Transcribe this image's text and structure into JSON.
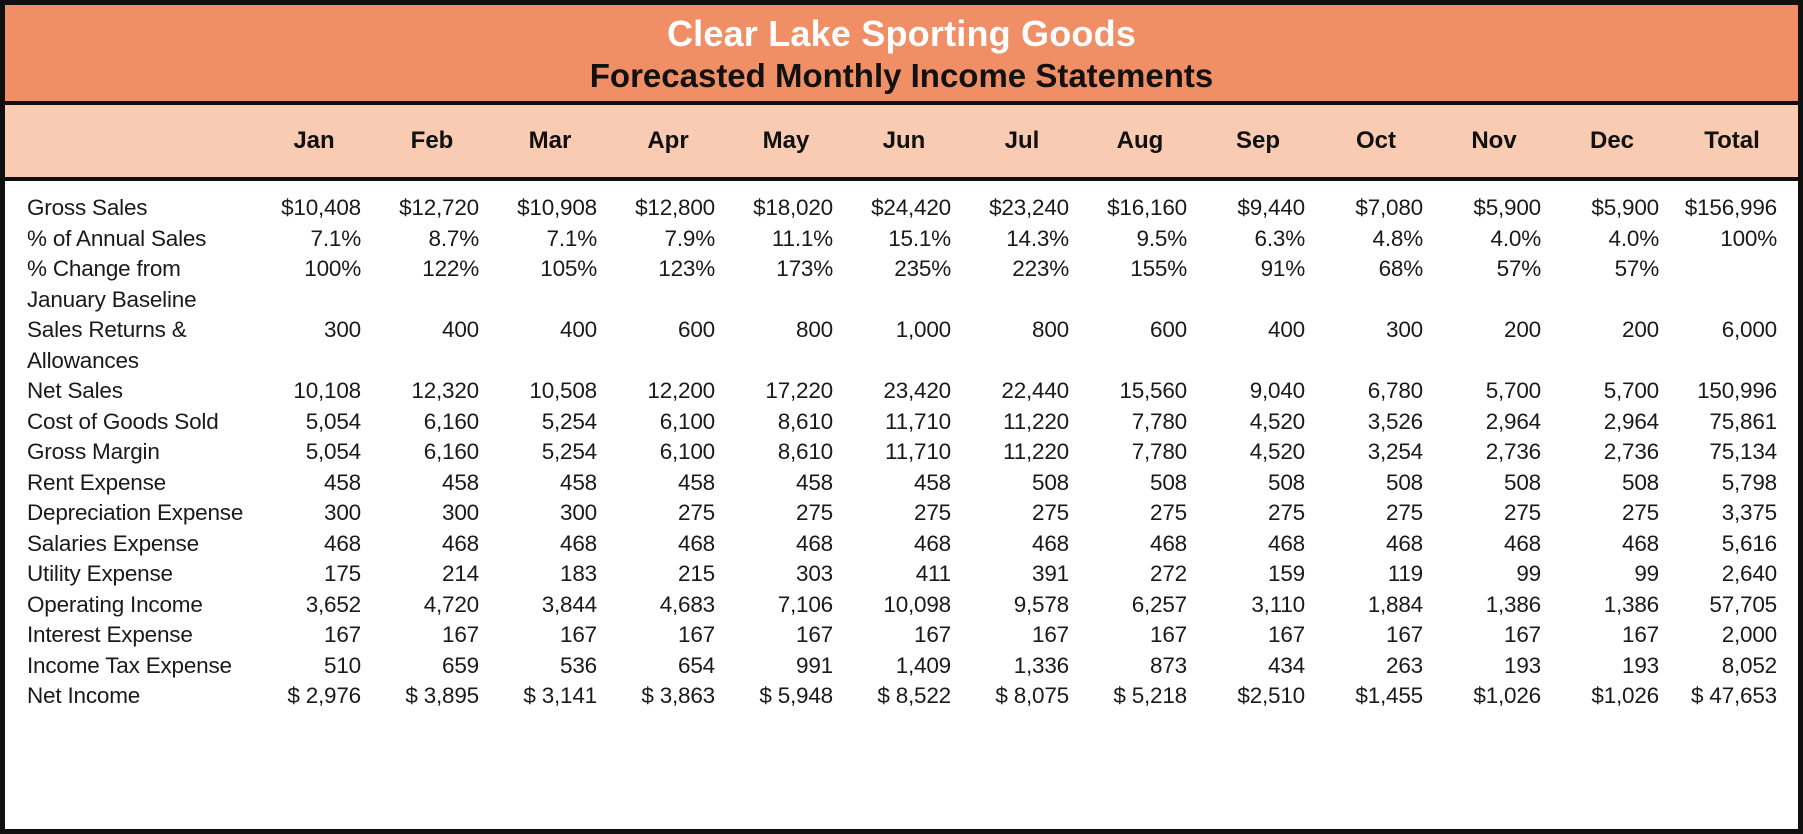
{
  "title": {
    "line1": "Clear Lake Sporting Goods",
    "line2": "Forecasted Monthly Income Statements"
  },
  "colors": {
    "header_bg": "#F08F65",
    "months_bg": "#F8CBB2",
    "border": "#0F0F0F",
    "title_line1_text": "#FFFFFF",
    "title_line2_text": "#111111"
  },
  "table": {
    "columns": [
      "",
      "Jan",
      "Feb",
      "Mar",
      "Apr",
      "May",
      "Jun",
      "Jul",
      "Aug",
      "Sep",
      "Oct",
      "Nov",
      "Dec",
      "Total"
    ],
    "rows": [
      {
        "label": "Gross Sales",
        "values": [
          "$10,408",
          "$12,720",
          "$10,908",
          "$12,800",
          "$18,020",
          "$24,420",
          "$23,240",
          "$16,160",
          "$9,440",
          "$7,080",
          "$5,900",
          "$5,900",
          "$156,996"
        ]
      },
      {
        "label": "% of Annual Sales",
        "values": [
          "7.1%",
          "8.7%",
          "7.1%",
          "7.9%",
          "11.1%",
          "15.1%",
          "14.3%",
          "9.5%",
          "6.3%",
          "4.8%",
          "4.0%",
          "4.0%",
          "100%"
        ]
      },
      {
        "label": "% Change from\nJanuary Baseline",
        "values": [
          "100%",
          "122%",
          "105%",
          "123%",
          "173%",
          "235%",
          "223%",
          "155%",
          "91%",
          "68%",
          "57%",
          "57%",
          ""
        ]
      },
      {
        "label": "Sales Returns &\nAllowances",
        "values": [
          "300",
          "400",
          "400",
          "600",
          "800",
          "1,000",
          "800",
          "600",
          "400",
          "300",
          "200",
          "200",
          "6,000"
        ]
      },
      {
        "label": "Net Sales",
        "values": [
          "10,108",
          "12,320",
          "10,508",
          "12,200",
          "17,220",
          "23,420",
          "22,440",
          "15,560",
          "9,040",
          "6,780",
          "5,700",
          "5,700",
          "150,996"
        ]
      },
      {
        "label": "Cost of Goods Sold",
        "values": [
          "5,054",
          "6,160",
          "5,254",
          "6,100",
          "8,610",
          "11,710",
          "11,220",
          "7,780",
          "4,520",
          "3,526",
          "2,964",
          "2,964",
          "75,861"
        ]
      },
      {
        "label": "Gross Margin",
        "values": [
          "5,054",
          "6,160",
          "5,254",
          "6,100",
          "8,610",
          "11,710",
          "11,220",
          "7,780",
          "4,520",
          "3,254",
          "2,736",
          "2,736",
          "75,134"
        ]
      },
      {
        "label": "Rent Expense",
        "values": [
          "458",
          "458",
          "458",
          "458",
          "458",
          "458",
          "508",
          "508",
          "508",
          "508",
          "508",
          "508",
          "5,798"
        ]
      },
      {
        "label": "Depreciation Expense",
        "values": [
          "300",
          "300",
          "300",
          "275",
          "275",
          "275",
          "275",
          "275",
          "275",
          "275",
          "275",
          "275",
          "3,375"
        ]
      },
      {
        "label": "Salaries Expense",
        "values": [
          "468",
          "468",
          "468",
          "468",
          "468",
          "468",
          "468",
          "468",
          "468",
          "468",
          "468",
          "468",
          "5,616"
        ]
      },
      {
        "label": "Utility Expense",
        "values": [
          "175",
          "214",
          "183",
          "215",
          "303",
          "411",
          "391",
          "272",
          "159",
          "119",
          "99",
          "99",
          "2,640"
        ]
      },
      {
        "label": "Operating Income",
        "values": [
          "3,652",
          "4,720",
          "3,844",
          "4,683",
          "7,106",
          "10,098",
          "9,578",
          "6,257",
          "3,110",
          "1,884",
          "1,386",
          "1,386",
          "57,705"
        ]
      },
      {
        "label": "Interest Expense",
        "values": [
          "167",
          "167",
          "167",
          "167",
          "167",
          "167",
          "167",
          "167",
          "167",
          "167",
          "167",
          "167",
          "2,000"
        ]
      },
      {
        "label": "Income Tax Expense",
        "values": [
          "510",
          "659",
          "536",
          "654",
          "991",
          "1,409",
          "1,336",
          "873",
          "434",
          "263",
          "193",
          "193",
          "8,052"
        ]
      },
      {
        "label": "Net Income",
        "values": [
          "$ 2,976",
          "$ 3,895",
          "$ 3,141",
          "$ 3,863",
          "$ 5,948",
          "$ 8,522",
          "$ 8,075",
          "$ 5,218",
          "$2,510",
          "$1,455",
          "$1,026",
          "$1,026",
          "$ 47,653"
        ]
      }
    ]
  }
}
